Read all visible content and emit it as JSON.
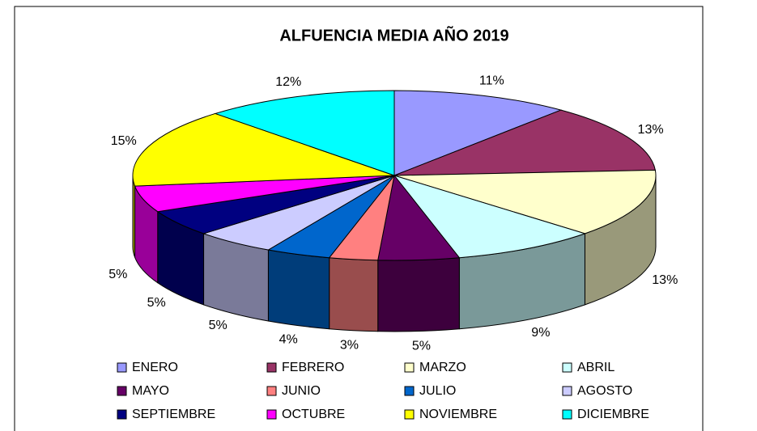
{
  "chart_data": {
    "type": "pie",
    "title": "ALFUENCIA MEDIA AÑO 2019",
    "categories": [
      "ENERO",
      "FEBRERO",
      "MARZO",
      "ABRIL",
      "MAYO",
      "JUNIO",
      "JULIO",
      "AGOSTO",
      "SEPTIEMBRE",
      "OCTUBRE",
      "NOVIEMBRE",
      "DICIEMBRE"
    ],
    "values": [
      11,
      13,
      13,
      9,
      5,
      3,
      4,
      5,
      5,
      5,
      15,
      12
    ],
    "value_labels": [
      "11%",
      "13%",
      "13%",
      "9%",
      "5%",
      "3%",
      "4%",
      "5%",
      "5%",
      "5%",
      "15%",
      "12%"
    ],
    "colors": [
      "#9999ff",
      "#993366",
      "#ffffcc",
      "#ccffff",
      "#660066",
      "#ff8080",
      "#0066cc",
      "#ccccff",
      "#000080",
      "#ff00ff",
      "#ffff00",
      "#00ffff"
    ],
    "legend": "bottom"
  }
}
